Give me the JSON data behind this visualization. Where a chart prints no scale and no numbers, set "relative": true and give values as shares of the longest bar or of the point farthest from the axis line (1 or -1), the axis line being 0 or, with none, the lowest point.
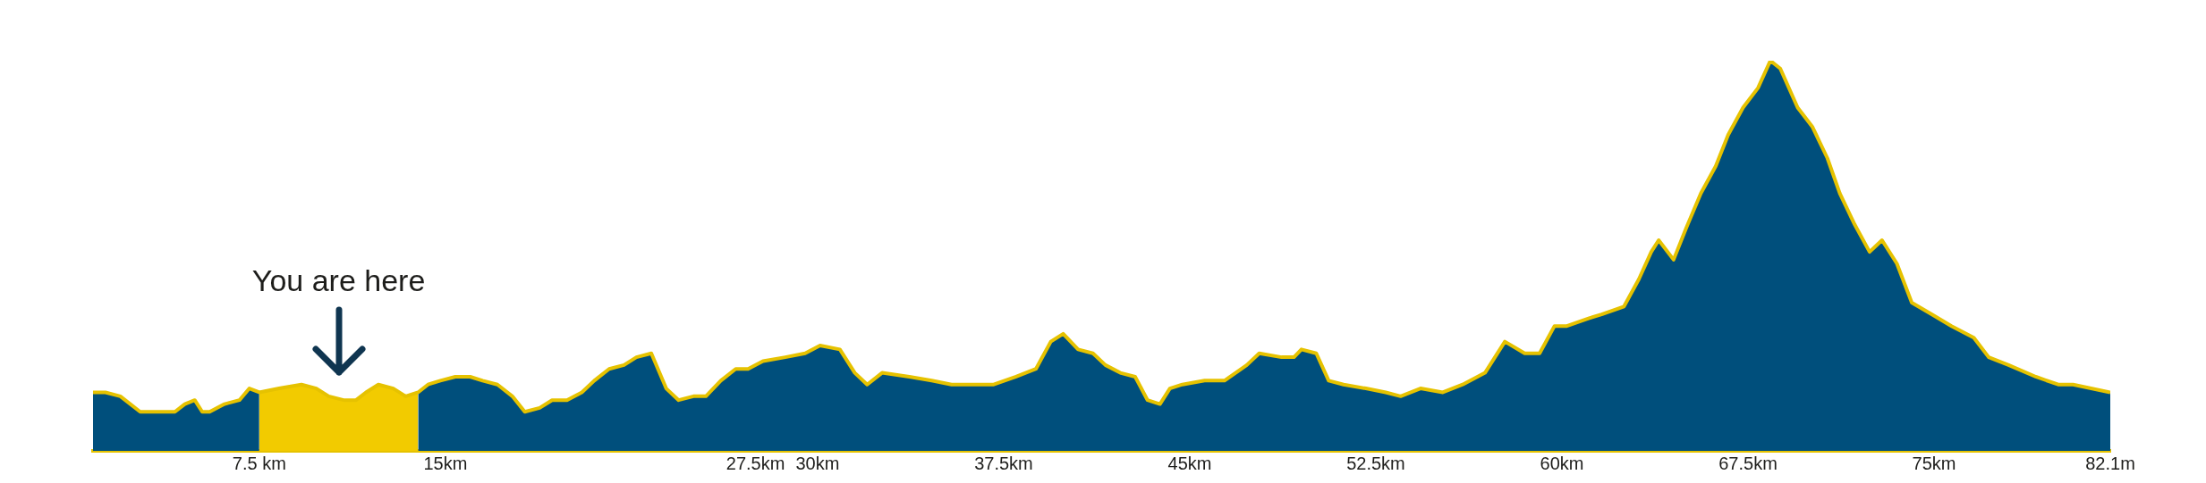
{
  "chart_data": {
    "type": "area",
    "relative": true,
    "grid": false,
    "legend": false,
    "tick_labels": "x",
    "marker": "none",
    "xlim": [
      0.8,
      82.1
    ],
    "xticks": [
      {
        "value": 7.5,
        "label": "7.5 km"
      },
      {
        "value": 15,
        "label": "15km"
      },
      {
        "value": 27.5,
        "label": "27.5km"
      },
      {
        "value": 30,
        "label": "30km"
      },
      {
        "value": 37.5,
        "label": "37.5km"
      },
      {
        "value": 45,
        "label": "45km"
      },
      {
        "value": 52.5,
        "label": "52.5km"
      },
      {
        "value": 60,
        "label": "60km"
      },
      {
        "value": 67.5,
        "label": "67.5km"
      },
      {
        "value": 75,
        "label": "75km"
      },
      {
        "value": 82.1,
        "label": "82.1m"
      }
    ],
    "annotations": [
      "You are here"
    ],
    "series": [
      {
        "color": "#004f7c",
        "x": [
          0.8,
          1.3,
          1.9,
          2.7,
          3.2,
          4.1,
          4.5,
          4.9,
          5.2,
          5.5,
          6.1,
          6.7,
          7.1,
          7.5,
          8.3,
          9.2,
          9.8,
          10.3,
          10.9,
          11.4,
          11.8,
          12.3,
          12.9,
          13.4,
          13.9,
          14.3,
          14.8,
          15.4,
          16.0,
          16.5,
          17.1,
          17.7,
          18.2,
          18.8,
          19.3,
          19.9,
          20.5,
          21.0,
          21.6,
          22.2,
          22.7,
          23.3,
          23.9,
          24.4,
          25.0,
          25.5,
          26.1,
          26.7,
          27.2,
          27.8,
          28.7,
          29.5,
          30.1,
          30.9,
          31.5,
          32.0,
          32.6,
          33.7,
          34.6,
          35.4,
          36.3,
          37.1,
          38.0,
          38.8,
          39.4,
          39.9,
          40.5,
          41.1,
          41.6,
          42.2,
          42.8,
          43.3,
          43.8,
          44.2,
          44.7,
          45.6,
          46.4,
          47.3,
          47.8,
          48.7,
          49.2,
          49.5,
          50.1,
          50.6,
          51.2,
          52.1,
          52.9,
          53.5,
          54.3,
          55.2,
          56.0,
          56.9,
          57.7,
          58.5,
          59.1,
          59.7,
          60.2,
          61.1,
          61.6,
          62.5,
          63.1,
          63.6,
          63.9,
          64.5,
          65.0,
          65.6,
          66.2,
          66.7,
          67.3,
          67.9,
          68.4,
          68.8,
          69.5,
          70.1,
          70.7,
          71.2,
          71.8,
          72.4,
          72.9,
          73.5,
          74.1,
          74.9,
          75.7,
          76.6,
          77.2,
          78.0,
          79.1,
          80.0,
          80.6,
          82.1
        ],
        "values": [
          0.15,
          0.15,
          0.14,
          0.1,
          0.1,
          0.1,
          0.12,
          0.13,
          0.1,
          0.1,
          0.12,
          0.13,
          0.16,
          0.15,
          null,
          null,
          null,
          null,
          null,
          null,
          null,
          null,
          null,
          null,
          0.15,
          0.17,
          0.18,
          0.19,
          0.19,
          0.18,
          0.17,
          0.14,
          0.1,
          0.11,
          0.13,
          0.13,
          0.15,
          0.18,
          0.21,
          0.22,
          0.24,
          0.25,
          0.16,
          0.13,
          0.14,
          0.14,
          0.18,
          0.21,
          0.21,
          0.23,
          0.24,
          0.25,
          0.27,
          0.26,
          0.2,
          0.17,
          0.2,
          0.19,
          0.18,
          0.17,
          0.17,
          0.17,
          0.19,
          0.21,
          0.28,
          0.3,
          0.26,
          0.25,
          0.22,
          0.2,
          0.19,
          0.13,
          0.12,
          0.16,
          0.17,
          0.18,
          0.18,
          0.22,
          0.25,
          0.24,
          0.24,
          0.26,
          0.25,
          0.18,
          0.17,
          0.16,
          0.15,
          0.14,
          0.16,
          0.15,
          0.17,
          0.2,
          0.28,
          0.25,
          0.25,
          0.32,
          0.32,
          0.34,
          0.35,
          0.37,
          0.44,
          0.51,
          0.54,
          0.49,
          0.57,
          0.66,
          0.73,
          0.81,
          0.88,
          0.93,
          1,
          0.98,
          0.88,
          0.83,
          0.75,
          0.66,
          0.58,
          0.51,
          0.54,
          0.48,
          0.38,
          0.35,
          0.32,
          0.29,
          0.24,
          0.22,
          0.19,
          0.17,
          0.17,
          0.15
        ]
      },
      {
        "color": "#f2cb00",
        "x": [
          7.5,
          8.3,
          9.2,
          9.8,
          10.3,
          10.9,
          11.4,
          11.8,
          12.3,
          12.9,
          13.4,
          13.9
        ],
        "values": [
          0.15,
          0.16,
          0.17,
          0.16,
          0.14,
          0.13,
          0.13,
          0.15,
          0.17,
          0.16,
          0.14,
          0.15
        ]
      },
      {
        "type": "line",
        "color": "#e6c200",
        "x": [
          0.8,
          1.3,
          1.9,
          2.7,
          3.2,
          4.1,
          4.5,
          4.9,
          5.2,
          5.5,
          6.1,
          6.7,
          7.1,
          7.5,
          8.3,
          9.2,
          9.8,
          10.3,
          10.9,
          11.4,
          11.8,
          12.3,
          12.9,
          13.4,
          13.9,
          14.3,
          14.8,
          15.4,
          16.0,
          16.5,
          17.1,
          17.7,
          18.2,
          18.8,
          19.3,
          19.9,
          20.5,
          21.0,
          21.6,
          22.2,
          22.7,
          23.3,
          23.9,
          24.4,
          25.0,
          25.5,
          26.1,
          26.7,
          27.2,
          27.8,
          28.7,
          29.5,
          30.1,
          30.9,
          31.5,
          32.0,
          32.6,
          33.7,
          34.6,
          35.4,
          36.3,
          37.1,
          38.0,
          38.8,
          39.4,
          39.9,
          40.5,
          41.1,
          41.6,
          42.2,
          42.8,
          43.3,
          43.8,
          44.2,
          44.7,
          45.6,
          46.4,
          47.3,
          47.8,
          48.7,
          49.2,
          49.5,
          50.1,
          50.6,
          51.2,
          52.1,
          52.9,
          53.5,
          54.3,
          55.2,
          56.0,
          56.9,
          57.7,
          58.5,
          59.1,
          59.7,
          60.2,
          61.1,
          61.6,
          62.5,
          63.1,
          63.6,
          63.9,
          64.5,
          65.0,
          65.6,
          66.2,
          66.7,
          67.3,
          67.9,
          68.4,
          68.8,
          69.5,
          70.1,
          70.7,
          71.2,
          71.8,
          72.4,
          72.9,
          73.5,
          74.1,
          74.9,
          75.7,
          76.6,
          77.2,
          78.0,
          79.1,
          80.0,
          80.6,
          82.1
        ],
        "values": [
          0.15,
          0.15,
          0.14,
          0.1,
          0.1,
          0.1,
          0.12,
          0.13,
          0.1,
          0.1,
          0.12,
          0.13,
          0.16,
          0.15,
          0.16,
          0.17,
          0.16,
          0.14,
          0.13,
          0.13,
          0.15,
          0.17,
          0.16,
          0.14,
          0.15,
          0.17,
          0.18,
          0.19,
          0.19,
          0.18,
          0.17,
          0.14,
          0.1,
          0.11,
          0.13,
          0.13,
          0.15,
          0.18,
          0.21,
          0.22,
          0.24,
          0.25,
          0.16,
          0.13,
          0.14,
          0.14,
          0.18,
          0.21,
          0.21,
          0.23,
          0.24,
          0.25,
          0.27,
          0.26,
          0.2,
          0.17,
          0.2,
          0.19,
          0.18,
          0.17,
          0.17,
          0.17,
          0.19,
          0.21,
          0.28,
          0.3,
          0.26,
          0.25,
          0.22,
          0.2,
          0.19,
          0.13,
          0.12,
          0.16,
          0.17,
          0.18,
          0.18,
          0.22,
          0.25,
          0.24,
          0.24,
          0.26,
          0.25,
          0.18,
          0.17,
          0.16,
          0.15,
          0.14,
          0.16,
          0.15,
          0.17,
          0.2,
          0.28,
          0.25,
          0.25,
          0.32,
          0.32,
          0.34,
          0.35,
          0.37,
          0.44,
          0.51,
          0.54,
          0.49,
          0.57,
          0.66,
          0.73,
          0.81,
          0.88,
          0.93,
          1,
          0.98,
          0.88,
          0.83,
          0.75,
          0.66,
          0.58,
          0.51,
          0.54,
          0.48,
          0.38,
          0.35,
          0.32,
          0.29,
          0.24,
          0.22,
          0.19,
          0.17,
          0.17,
          0.15
        ]
      }
    ]
  }
}
